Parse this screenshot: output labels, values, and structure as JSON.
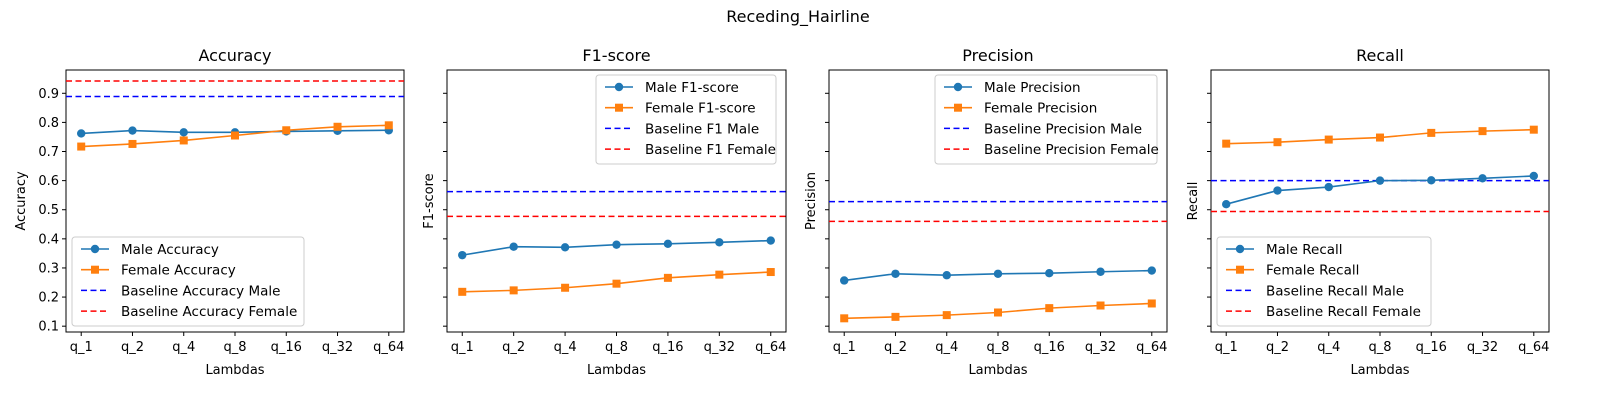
{
  "figure_title": "Receding_Hairline",
  "colors": {
    "male": "#1f77b4",
    "female": "#ff7f0e",
    "baseline_male": "#0000ff",
    "baseline_female": "#ff0000"
  },
  "chart_data": [
    {
      "type": "line",
      "title": "Accuracy",
      "xlabel": "Lambdas",
      "ylabel": "Accuracy",
      "categories": [
        "q_1",
        "q_2",
        "q_4",
        "q_8",
        "q_16",
        "q_32",
        "q_64"
      ],
      "ylim": [
        0.08,
        0.98
      ],
      "yticks": [
        "0.1",
        "0.2",
        "0.3",
        "0.4",
        "0.5",
        "0.6",
        "0.7",
        "0.8",
        "0.9"
      ],
      "legend_position": "lower-left",
      "series": [
        {
          "name": "Male Accuracy",
          "marker": "circle",
          "values": [
            0.762,
            0.772,
            0.766,
            0.766,
            0.769,
            0.771,
            0.773
          ]
        },
        {
          "name": "Female Accuracy",
          "marker": "square",
          "values": [
            0.717,
            0.726,
            0.738,
            0.755,
            0.773,
            0.785,
            0.79
          ]
        }
      ],
      "baselines": [
        {
          "name": "Baseline Accuracy Male",
          "value": 0.889,
          "color": "#0000ff"
        },
        {
          "name": "Baseline Accuracy Female",
          "value": 0.942,
          "color": "#ff0000"
        }
      ]
    },
    {
      "type": "line",
      "title": "F1-score",
      "xlabel": "Lambdas",
      "ylabel": "F1-score",
      "categories": [
        "q_1",
        "q_2",
        "q_4",
        "q_8",
        "q_16",
        "q_32",
        "q_64"
      ],
      "ylim": [
        0.08,
        0.98
      ],
      "yticks": [],
      "legend_position": "upper-right",
      "series": [
        {
          "name": "Male F1-score",
          "marker": "circle",
          "values": [
            0.344,
            0.373,
            0.371,
            0.38,
            0.383,
            0.388,
            0.394
          ]
        },
        {
          "name": "Female F1-score",
          "marker": "square",
          "values": [
            0.218,
            0.223,
            0.232,
            0.246,
            0.266,
            0.277,
            0.286
          ]
        }
      ],
      "baselines": [
        {
          "name": "Baseline F1 Male",
          "value": 0.562,
          "color": "#0000ff"
        },
        {
          "name": "Baseline F1 Female",
          "value": 0.477,
          "color": "#ff0000"
        }
      ]
    },
    {
      "type": "line",
      "title": "Precision",
      "xlabel": "Lambdas",
      "ylabel": "Precision",
      "categories": [
        "q_1",
        "q_2",
        "q_4",
        "q_8",
        "q_16",
        "q_32",
        "q_64"
      ],
      "ylim": [
        0.08,
        0.98
      ],
      "yticks": [],
      "legend_position": "upper-right",
      "series": [
        {
          "name": "Male Precision",
          "marker": "circle",
          "values": [
            0.257,
            0.28,
            0.275,
            0.28,
            0.282,
            0.287,
            0.291
          ]
        },
        {
          "name": "Female Precision",
          "marker": "square",
          "values": [
            0.127,
            0.132,
            0.138,
            0.147,
            0.162,
            0.171,
            0.178
          ]
        }
      ],
      "baselines": [
        {
          "name": "Baseline Precision Male",
          "value": 0.528,
          "color": "#0000ff"
        },
        {
          "name": "Baseline Precision Female",
          "value": 0.46,
          "color": "#ff0000"
        }
      ]
    },
    {
      "type": "line",
      "title": "Recall",
      "xlabel": "Lambdas",
      "ylabel": "Recall",
      "categories": [
        "q_1",
        "q_2",
        "q_4",
        "q_8",
        "q_16",
        "q_32",
        "q_64"
      ],
      "ylim": [
        0.08,
        0.98
      ],
      "yticks": [],
      "legend_position": "lower-left",
      "series": [
        {
          "name": "Male Recall",
          "marker": "circle",
          "values": [
            0.519,
            0.566,
            0.578,
            0.6,
            0.601,
            0.608,
            0.616
          ]
        },
        {
          "name": "Female Recall",
          "marker": "square",
          "values": [
            0.727,
            0.732,
            0.741,
            0.748,
            0.764,
            0.77,
            0.775
          ]
        }
      ],
      "baselines": [
        {
          "name": "Baseline Recall Male",
          "value": 0.6,
          "color": "#0000ff"
        },
        {
          "name": "Baseline Recall Female",
          "value": 0.494,
          "color": "#ff0000"
        }
      ]
    }
  ]
}
